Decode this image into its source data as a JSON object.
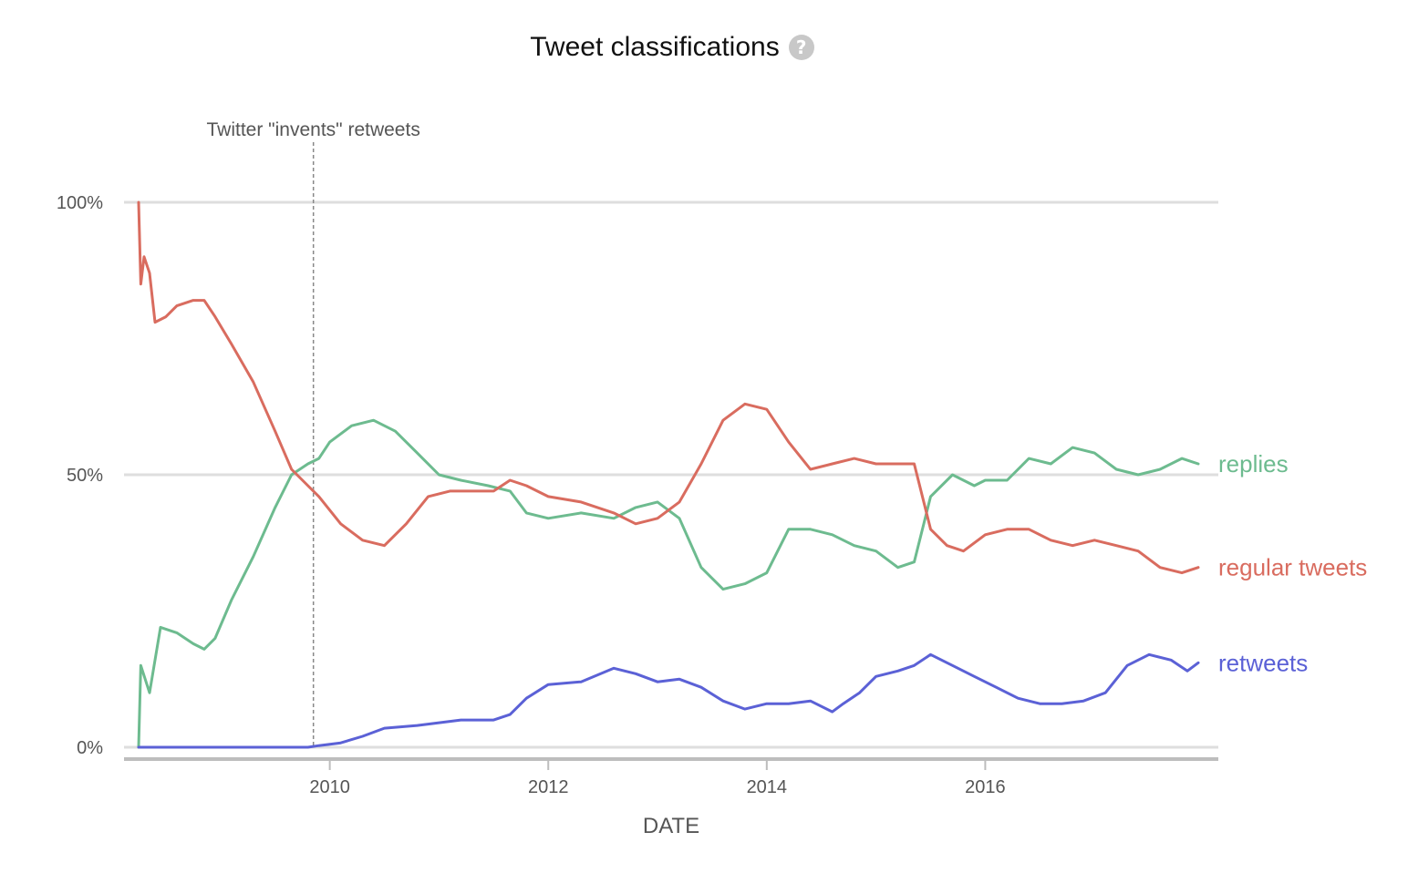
{
  "title": "Tweet classifications",
  "help_icon": {
    "name": "question-mark-icon",
    "glyph": "?"
  },
  "chart_data": {
    "type": "line",
    "title": "Tweet classifications",
    "xlabel": "DATE",
    "ylabel": "",
    "x_ticks": [
      "2010",
      "2012",
      "2014",
      "2016"
    ],
    "y_ticks": [
      "0%",
      "50%",
      "100%"
    ],
    "ylim": [
      0,
      100
    ],
    "xlim": [
      2008.25,
      2018.0
    ],
    "grid": true,
    "legend": "inline-right",
    "annotation": {
      "label": "Twitter \"invents\" retweets",
      "x": 2009.85
    },
    "series": [
      {
        "name": "replies",
        "color": "#6dbb8f",
        "x": [
          2008.25,
          2008.27,
          2008.35,
          2008.45,
          2008.6,
          2008.75,
          2008.85,
          2008.95,
          2009.1,
          2009.3,
          2009.5,
          2009.65,
          2009.8,
          2009.9,
          2010.0,
          2010.2,
          2010.4,
          2010.6,
          2010.8,
          2011.0,
          2011.2,
          2011.45,
          2011.65,
          2011.8,
          2012.0,
          2012.3,
          2012.6,
          2012.8,
          2013.0,
          2013.2,
          2013.4,
          2013.6,
          2013.8,
          2014.0,
          2014.2,
          2014.4,
          2014.6,
          2014.8,
          2015.0,
          2015.2,
          2015.35,
          2015.5,
          2015.7,
          2015.9,
          2016.0,
          2016.2,
          2016.4,
          2016.6,
          2016.8,
          2017.0,
          2017.2,
          2017.4,
          2017.6,
          2017.8,
          2017.95
        ],
        "values": [
          0,
          15,
          10,
          22,
          21,
          19,
          18,
          20,
          27,
          35,
          44,
          50,
          52,
          53,
          56,
          59,
          60,
          58,
          54,
          50,
          49,
          48,
          47,
          43,
          42,
          43,
          42,
          44,
          45,
          42,
          33,
          29,
          30,
          32,
          40,
          40,
          39,
          37,
          36,
          33,
          34,
          46,
          50,
          48,
          49,
          49,
          53,
          52,
          55,
          54,
          51,
          50,
          51,
          53,
          52
        ]
      },
      {
        "name": "regular tweets",
        "color": "#d96c5f",
        "x": [
          2008.25,
          2008.27,
          2008.3,
          2008.35,
          2008.4,
          2008.5,
          2008.6,
          2008.75,
          2008.85,
          2008.95,
          2009.1,
          2009.3,
          2009.5,
          2009.65,
          2009.8,
          2009.9,
          2010.1,
          2010.3,
          2010.5,
          2010.7,
          2010.9,
          2011.1,
          2011.3,
          2011.5,
          2011.65,
          2011.8,
          2012.0,
          2012.3,
          2012.6,
          2012.8,
          2013.0,
          2013.2,
          2013.4,
          2013.6,
          2013.8,
          2014.0,
          2014.2,
          2014.4,
          2014.6,
          2014.8,
          2015.0,
          2015.2,
          2015.35,
          2015.5,
          2015.65,
          2015.8,
          2016.0,
          2016.2,
          2016.4,
          2016.6,
          2016.8,
          2017.0,
          2017.2,
          2017.4,
          2017.6,
          2017.8,
          2017.95
        ],
        "values": [
          100,
          85,
          90,
          87,
          78,
          79,
          81,
          82,
          82,
          79,
          74,
          67,
          58,
          51,
          48,
          46,
          41,
          38,
          37,
          41,
          46,
          47,
          47,
          47,
          49,
          48,
          46,
          45,
          43,
          41,
          42,
          45,
          52,
          60,
          63,
          62,
          56,
          51,
          52,
          53,
          52,
          52,
          52,
          40,
          37,
          36,
          39,
          40,
          40,
          38,
          37,
          38,
          37,
          36,
          33,
          32,
          33
        ]
      },
      {
        "name": "retweets",
        "color": "#5b61d6",
        "x": [
          2008.25,
          2009.8,
          2009.9,
          2010.1,
          2010.3,
          2010.5,
          2010.8,
          2011.2,
          2011.5,
          2011.65,
          2011.8,
          2012.0,
          2012.3,
          2012.6,
          2012.8,
          2013.0,
          2013.2,
          2013.4,
          2013.6,
          2013.8,
          2014.0,
          2014.2,
          2014.4,
          2014.6,
          2014.7,
          2014.85,
          2015.0,
          2015.2,
          2015.35,
          2015.5,
          2015.7,
          2015.9,
          2016.1,
          2016.3,
          2016.5,
          2016.7,
          2016.9,
          2017.1,
          2017.3,
          2017.5,
          2017.7,
          2017.85,
          2017.95
        ],
        "values": [
          0,
          0,
          0.3,
          0.8,
          2,
          3.5,
          4,
          5,
          5,
          6,
          9,
          11.5,
          12,
          14.5,
          13.5,
          12,
          12.5,
          11,
          8.5,
          7,
          8,
          8,
          8.5,
          6.5,
          8,
          10,
          13,
          14,
          15,
          17,
          15,
          13,
          11,
          9,
          8,
          8,
          8.5,
          10,
          15,
          17,
          16,
          14,
          15.5
        ]
      }
    ]
  }
}
